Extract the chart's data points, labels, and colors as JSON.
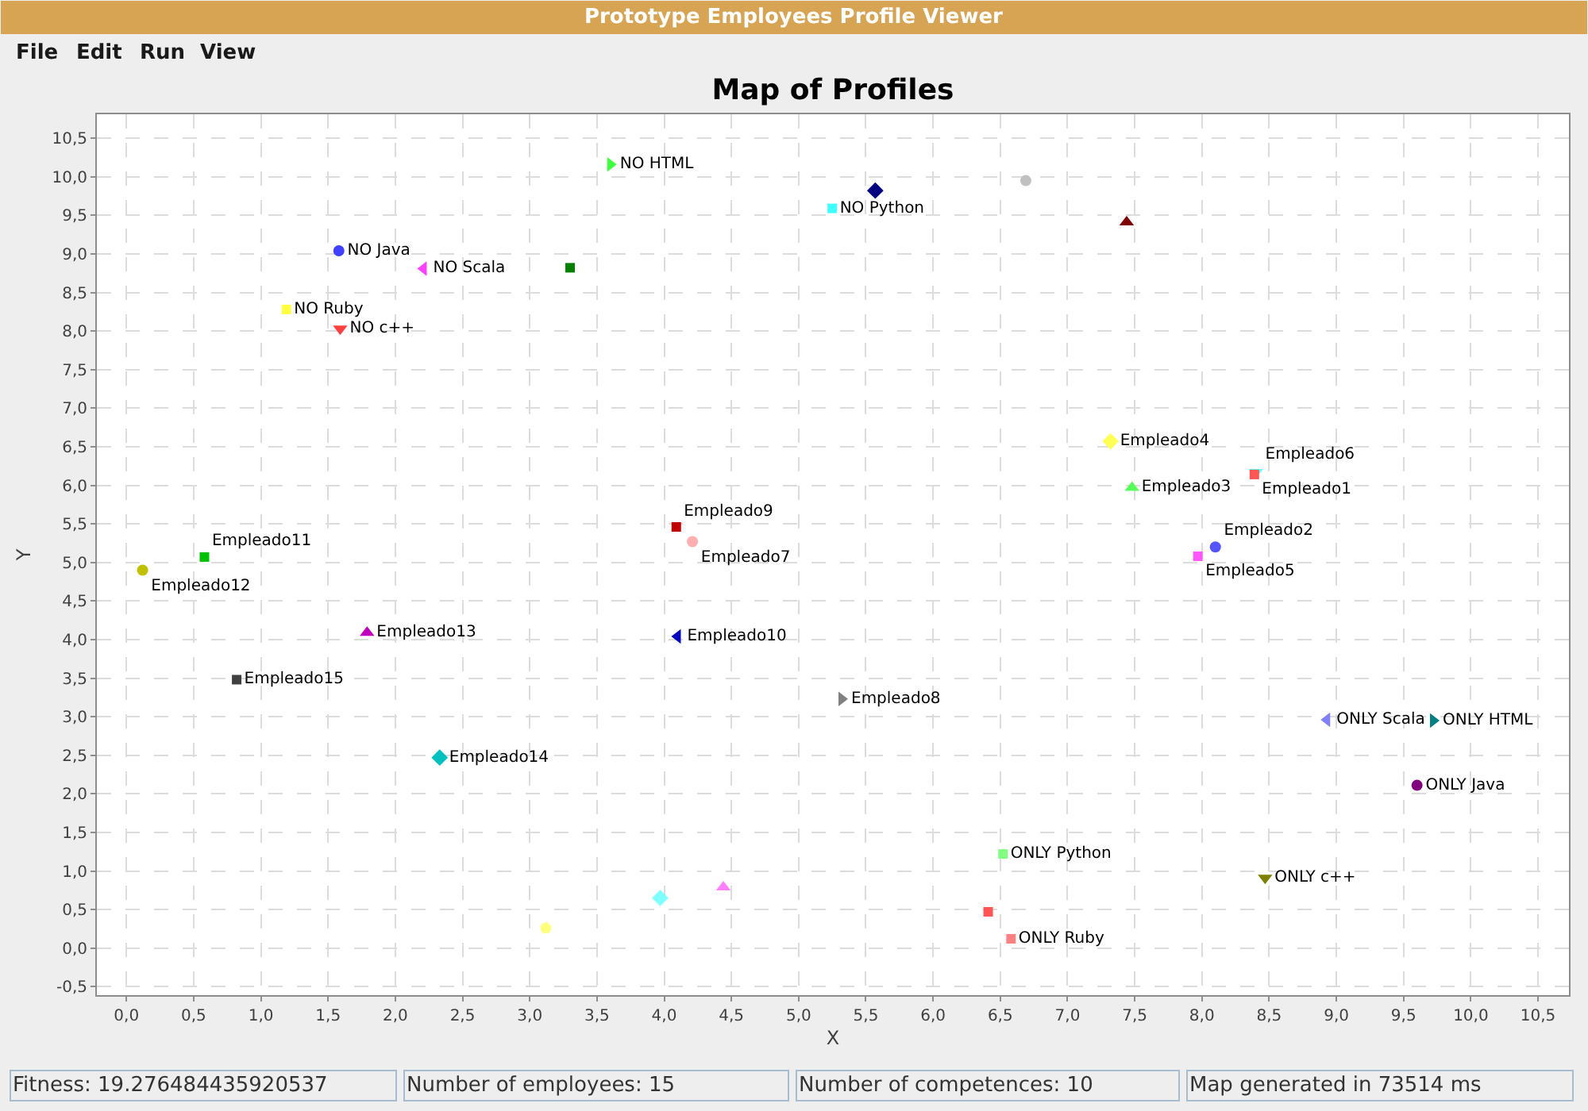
{
  "chart_data": {
    "type": "scatter",
    "title": "Map of Profiles",
    "xlabel": "X",
    "ylabel": "Y",
    "annotations": [
      "Prototype Employees Profile Viewer",
      "File",
      "Edit",
      "Run",
      "View",
      "Fitness: 19.276484435920537",
      "Number of employees: 15",
      "Number of competences: 10",
      "Map generated in 73514 ms"
    ],
    "xlim": [
      -0.22,
      10.73
    ],
    "ylim": [
      -0.61,
      10.81
    ],
    "xticks": [
      {
        "value": 0,
        "label": "0,0"
      },
      {
        "value": 0.5,
        "label": "0,5"
      },
      {
        "value": 1,
        "label": "1,0"
      },
      {
        "value": 1.5,
        "label": "1,5"
      },
      {
        "value": 2,
        "label": "2,0"
      },
      {
        "value": 2.5,
        "label": "2,5"
      },
      {
        "value": 3,
        "label": "3,0"
      },
      {
        "value": 3.5,
        "label": "3,5"
      },
      {
        "value": 4,
        "label": "4,0"
      },
      {
        "value": 4.5,
        "label": "4,5"
      },
      {
        "value": 5,
        "label": "5,0"
      },
      {
        "value": 5.5,
        "label": "5,5"
      },
      {
        "value": 6,
        "label": "6,0"
      },
      {
        "value": 6.5,
        "label": "6,5"
      },
      {
        "value": 7,
        "label": "7,0"
      },
      {
        "value": 7.5,
        "label": "7,5"
      },
      {
        "value": 8,
        "label": "8,0"
      },
      {
        "value": 8.5,
        "label": "8,5"
      },
      {
        "value": 9,
        "label": "9,0"
      },
      {
        "value": 9.5,
        "label": "9,5"
      },
      {
        "value": 10,
        "label": "10,0"
      },
      {
        "value": 10.5,
        "label": "10,5"
      }
    ],
    "yticks": [
      {
        "value": -0.5,
        "label": "-0,5"
      },
      {
        "value": 0,
        "label": "0,0"
      },
      {
        "value": 0.5,
        "label": "0,5"
      },
      {
        "value": 1,
        "label": "1,0"
      },
      {
        "value": 1.5,
        "label": "1,5"
      },
      {
        "value": 2,
        "label": "2,0"
      },
      {
        "value": 2.5,
        "label": "2,5"
      },
      {
        "value": 3,
        "label": "3,0"
      },
      {
        "value": 3.5,
        "label": "3,5"
      },
      {
        "value": 4,
        "label": "4,0"
      },
      {
        "value": 4.5,
        "label": "4,5"
      },
      {
        "value": 5,
        "label": "5,0"
      },
      {
        "value": 5.5,
        "label": "5,5"
      },
      {
        "value": 6,
        "label": "6,0"
      },
      {
        "value": 6.5,
        "label": "6,5"
      },
      {
        "value": 7,
        "label": "7,0"
      },
      {
        "value": 7.5,
        "label": "7,5"
      },
      {
        "value": 8,
        "label": "8,0"
      },
      {
        "value": 8.5,
        "label": "8,5"
      },
      {
        "value": 9,
        "label": "9,0"
      },
      {
        "value": 9.5,
        "label": "9,5"
      },
      {
        "value": 10,
        "label": "10,0"
      },
      {
        "value": 10.5,
        "label": "10,5"
      }
    ],
    "grid": true,
    "series": [
      {
        "name": "Empleado1",
        "color": "#ff5555",
        "marker": "square",
        "x": [
          8.39
        ],
        "values": [
          6.14
        ]
      },
      {
        "name": "Empleado2",
        "color": "#5555ff",
        "marker": "circle",
        "x": [
          8.1
        ],
        "values": [
          5.2
        ]
      },
      {
        "name": "Empleado3",
        "color": "#55ff55",
        "marker": "triangle",
        "x": [
          7.48
        ],
        "values": [
          5.97
        ]
      },
      {
        "name": "Empleado4",
        "color": "#ffff55",
        "marker": "diamond",
        "x": [
          7.32
        ],
        "values": [
          6.57
        ]
      },
      {
        "name": "Empleado5",
        "color": "#ff55ff",
        "marker": "square",
        "x": [
          7.97
        ],
        "values": [
          5.08
        ]
      },
      {
        "name": "Empleado6",
        "color": "#55ffff",
        "marker": "triangle-down",
        "x": [
          8.4
        ],
        "values": [
          6.17
        ]
      },
      {
        "name": "Empleado7",
        "color": "#ffafaf",
        "marker": "circle",
        "x": [
          4.21
        ],
        "values": [
          5.27
        ]
      },
      {
        "name": "Empleado8",
        "color": "#808080",
        "marker": "triangle-right",
        "x": [
          5.32
        ],
        "values": [
          3.23
        ]
      },
      {
        "name": "Empleado9",
        "color": "#c00000",
        "marker": "square",
        "x": [
          4.09
        ],
        "values": [
          5.46
        ]
      },
      {
        "name": "Empleado10",
        "color": "#0000c0",
        "marker": "triangle-left",
        "x": [
          4.1
        ],
        "values": [
          4.04
        ]
      },
      {
        "name": "Empleado11",
        "color": "#00c000",
        "marker": "square",
        "x": [
          0.58
        ],
        "values": [
          5.07
        ]
      },
      {
        "name": "Empleado12",
        "color": "#c0c000",
        "marker": "circle",
        "x": [
          0.12
        ],
        "values": [
          4.9
        ]
      },
      {
        "name": "Empleado13",
        "color": "#c000c0",
        "marker": "triangle",
        "x": [
          1.79
        ],
        "values": [
          4.09
        ]
      },
      {
        "name": "Empleado14",
        "color": "#00c0c0",
        "marker": "diamond",
        "x": [
          2.33
        ],
        "values": [
          2.47
        ]
      },
      {
        "name": "Empleado15",
        "color": "#404040",
        "marker": "square",
        "x": [
          0.82
        ],
        "values": [
          3.48
        ]
      },
      {
        "name": "NO c++",
        "color": "#ff4040",
        "marker": "triangle-down",
        "x": [
          1.59
        ],
        "values": [
          8.03
        ]
      },
      {
        "name": "NO Java",
        "color": "#4040ff",
        "marker": "circle",
        "x": [
          1.58
        ],
        "values": [
          9.04
        ]
      },
      {
        "name": "NO HTML",
        "color": "#40ff40",
        "marker": "triangle-right",
        "x": [
          3.6
        ],
        "values": [
          10.16
        ]
      },
      {
        "name": "NO Ruby",
        "color": "#ffff40",
        "marker": "square",
        "x": [
          1.19
        ],
        "values": [
          8.28
        ]
      },
      {
        "name": "NO Scala",
        "color": "#ff40ff",
        "marker": "triangle-left",
        "x": [
          2.21
        ],
        "values": [
          8.81
        ]
      },
      {
        "name": "NO Python",
        "color": "#40ffff",
        "marker": "square",
        "x": [
          5.25
        ],
        "values": [
          9.59
        ]
      },
      {
        "color": "#c0c0c0",
        "marker": "circle",
        "x": [
          6.69
        ],
        "values": [
          9.95
        ]
      },
      {
        "color": "#800000",
        "marker": "triangle",
        "x": [
          7.44
        ],
        "values": [
          9.41
        ]
      },
      {
        "color": "#000080",
        "marker": "diamond",
        "x": [
          5.57
        ],
        "values": [
          9.82
        ]
      },
      {
        "color": "#008000",
        "marker": "square",
        "x": [
          3.3
        ],
        "values": [
          8.82
        ]
      },
      {
        "name": "ONLY c++",
        "color": "#808000",
        "marker": "triangle-down",
        "x": [
          8.47
        ],
        "values": [
          0.91
        ]
      },
      {
        "name": "ONLY Java",
        "color": "#800080",
        "marker": "circle",
        "x": [
          9.6
        ],
        "values": [
          2.11
        ]
      },
      {
        "name": "ONLY HTML",
        "color": "#008080",
        "marker": "triangle-right",
        "x": [
          9.72
        ],
        "values": [
          2.95
        ]
      },
      {
        "name": "ONLY Ruby",
        "color": "#ff8080",
        "marker": "square",
        "x": [
          6.58
        ],
        "values": [
          0.12
        ]
      },
      {
        "name": "ONLY Scala",
        "color": "#8080ff",
        "marker": "triangle-left",
        "x": [
          8.93
        ],
        "values": [
          2.96
        ]
      },
      {
        "name": "ONLY Python",
        "color": "#80ff80",
        "marker": "square",
        "x": [
          6.52
        ],
        "values": [
          1.22
        ]
      },
      {
        "color": "#ffff80",
        "marker": "circle",
        "x": [
          3.12
        ],
        "values": [
          0.26
        ]
      },
      {
        "color": "#ff80ff",
        "marker": "triangle",
        "x": [
          4.44
        ],
        "values": [
          0.79
        ]
      },
      {
        "color": "#80ffff",
        "marker": "diamond",
        "x": [
          3.97
        ],
        "values": [
          0.65
        ]
      },
      {
        "color": "#ff5555",
        "marker": "square",
        "x": [
          6.41
        ],
        "values": [
          0.47
        ]
      }
    ]
  }
}
